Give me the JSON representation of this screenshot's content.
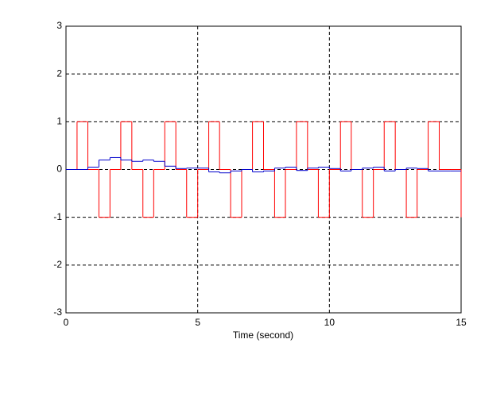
{
  "chart_data": {
    "type": "step",
    "x_label": "Time (second)",
    "x": [
      0,
      0.42,
      0.83,
      1.25,
      1.67,
      2.08,
      2.5,
      2.92,
      3.33,
      3.75,
      4.17,
      4.58,
      5,
      5.42,
      5.83,
      6.25,
      6.67,
      7.08,
      7.5,
      7.92,
      8.33,
      8.75,
      9.17,
      9.58,
      10,
      10.42,
      10.83,
      11.25,
      11.67,
      12.08,
      12.5,
      12.92,
      13.33,
      13.75,
      14.17,
      14.58,
      15
    ],
    "series": [
      {
        "color": "#ff0000",
        "values": [
          0,
          1,
          0,
          -1,
          0,
          1,
          0,
          -1,
          0,
          1,
          0,
          -1,
          0,
          1,
          0,
          -1,
          0,
          1,
          0,
          -1,
          0,
          1,
          0,
          -1,
          0,
          1,
          0,
          -1,
          0,
          1,
          0,
          -1,
          0,
          1,
          0,
          0,
          -1
        ]
      },
      {
        "color": "#0000cc",
        "values": [
          0,
          0,
          0.05,
          0.2,
          0.25,
          0.2,
          0.17,
          0.2,
          0.17,
          0.07,
          0.02,
          0.03,
          0.03,
          -0.05,
          -0.07,
          -0.03,
          0,
          -0.05,
          -0.03,
          0.03,
          0.05,
          -0.02,
          0.03,
          0.05,
          0.02,
          -0.03,
          0,
          0.03,
          0.05,
          -0.03,
          0,
          0.03,
          0.02,
          -0.03,
          -0.03,
          -0.03,
          -0.03
        ]
      }
    ],
    "xlim": [
      0,
      15
    ],
    "ylim": [
      -3,
      3
    ],
    "xticks": [
      0,
      5,
      10,
      15
    ],
    "yticks": [
      -3,
      -2,
      -1,
      0,
      1,
      2,
      3
    ],
    "grid": true
  }
}
